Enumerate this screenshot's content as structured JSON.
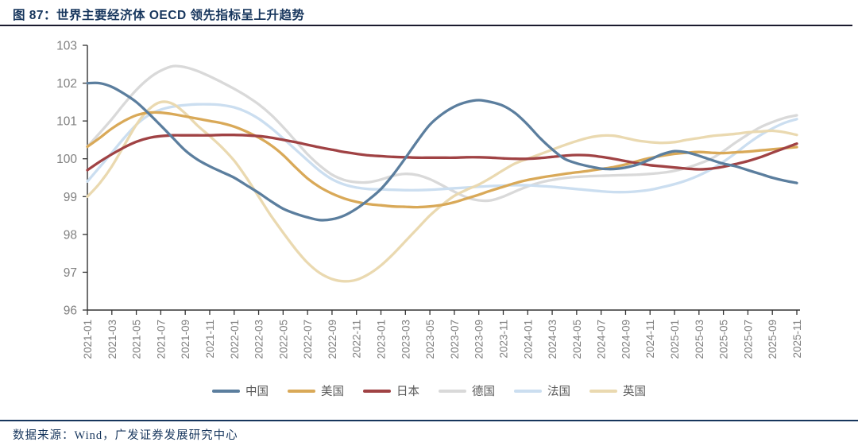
{
  "page": {
    "title": "图 87：世界主要经济体 OECD 领先指标呈上升趋势",
    "source": "数据来源：Wind，广发证券发展研究中心"
  },
  "colors": {
    "title_navy": "#17365D",
    "rule_dark": "#1a1a2e",
    "axis_line": "#333333",
    "tick_label_gray": "#808080",
    "legend_text_gray": "#595959"
  },
  "chart_data": {
    "type": "line",
    "title": "世界主要经济体 OECD 领先指标",
    "ylabel": "",
    "xlabel": "",
    "ylim": [
      96,
      103
    ],
    "y_ticks": [
      96,
      97,
      98,
      99,
      100,
      101,
      102,
      103
    ],
    "grid": false,
    "legend_position": "bottom",
    "x_tick_every": 2,
    "x_tick_labels": [
      "2021-01",
      "2021-03",
      "2021-05",
      "2021-07",
      "2021-09",
      "2021-11",
      "2022-01",
      "2022-03",
      "2022-05",
      "2022-07",
      "2022-09",
      "2022-11",
      "2023-01",
      "2023-03",
      "2023-05",
      "2023-07",
      "2023-09",
      "2023-11",
      "2024-01",
      "2024-03",
      "2024-05",
      "2024-07",
      "2024-09",
      "2024-11",
      "2025-01",
      "2025-03",
      "2025-05",
      "2025-07",
      "2025-09",
      "2025-11"
    ],
    "x": [
      "2021-01",
      "2021-02",
      "2021-03",
      "2021-04",
      "2021-05",
      "2021-06",
      "2021-07",
      "2021-08",
      "2021-09",
      "2021-10",
      "2021-11",
      "2021-12",
      "2022-01",
      "2022-02",
      "2022-03",
      "2022-04",
      "2022-05",
      "2022-06",
      "2022-07",
      "2022-08",
      "2022-09",
      "2022-10",
      "2022-11",
      "2022-12",
      "2023-01",
      "2023-02",
      "2023-03",
      "2023-04",
      "2023-05",
      "2023-06",
      "2023-07",
      "2023-08",
      "2023-09",
      "2023-10",
      "2023-11",
      "2023-12",
      "2024-01",
      "2024-02",
      "2024-03",
      "2024-04",
      "2024-05",
      "2024-06",
      "2024-07",
      "2024-08",
      "2024-09",
      "2024-10",
      "2024-11",
      "2024-12",
      "2025-01",
      "2025-02",
      "2025-03",
      "2025-04",
      "2025-05",
      "2025-06",
      "2025-07",
      "2025-08",
      "2025-09",
      "2025-10",
      "2025-11"
    ],
    "series": [
      {
        "id": "china",
        "name": "中国",
        "color": "#5B7E9E",
        "values": [
          102.0,
          102.0,
          101.9,
          101.72,
          101.5,
          101.2,
          100.88,
          100.55,
          100.22,
          99.98,
          99.8,
          99.65,
          99.5,
          99.3,
          99.1,
          98.88,
          98.68,
          98.55,
          98.45,
          98.38,
          98.4,
          98.5,
          98.68,
          98.92,
          99.2,
          99.58,
          100.02,
          100.48,
          100.9,
          101.18,
          101.38,
          101.5,
          101.55,
          101.5,
          101.4,
          101.2,
          100.9,
          100.55,
          100.25,
          100.0,
          99.88,
          99.8,
          99.74,
          99.73,
          99.77,
          99.85,
          99.98,
          100.12,
          100.2,
          100.17,
          100.08,
          99.97,
          99.87,
          99.8,
          99.7,
          99.6,
          99.5,
          99.42,
          99.36
        ]
      },
      {
        "id": "usa",
        "name": "美国",
        "color": "#D9A958",
        "values": [
          100.32,
          100.55,
          100.8,
          101.0,
          101.15,
          101.22,
          101.22,
          101.18,
          101.12,
          101.06,
          101.0,
          100.94,
          100.85,
          100.72,
          100.56,
          100.36,
          100.1,
          99.78,
          99.48,
          99.25,
          99.08,
          98.95,
          98.86,
          98.8,
          98.77,
          98.74,
          98.73,
          98.72,
          98.74,
          98.78,
          98.85,
          98.95,
          99.05,
          99.16,
          99.26,
          99.36,
          99.44,
          99.5,
          99.55,
          99.6,
          99.64,
          99.68,
          99.73,
          99.78,
          99.85,
          99.94,
          100.02,
          100.08,
          100.13,
          100.16,
          100.18,
          100.16,
          100.15,
          100.17,
          100.19,
          100.22,
          100.25,
          100.28,
          100.31
        ]
      },
      {
        "id": "japan",
        "name": "日本",
        "color": "#A04244",
        "values": [
          99.7,
          99.92,
          100.12,
          100.3,
          100.45,
          100.55,
          100.6,
          100.62,
          100.62,
          100.62,
          100.62,
          100.63,
          100.63,
          100.62,
          100.6,
          100.56,
          100.5,
          100.44,
          100.37,
          100.3,
          100.24,
          100.18,
          100.13,
          100.09,
          100.07,
          100.05,
          100.04,
          100.03,
          100.03,
          100.03,
          100.03,
          100.04,
          100.04,
          100.03,
          100.01,
          100.0,
          100.0,
          100.02,
          100.05,
          100.08,
          100.1,
          100.09,
          100.05,
          100.0,
          99.94,
          99.88,
          99.83,
          99.8,
          99.77,
          99.74,
          99.72,
          99.74,
          99.79,
          99.86,
          99.94,
          100.04,
          100.16,
          100.28,
          100.4
        ]
      },
      {
        "id": "germany",
        "name": "德国",
        "color": "#D9D9D9",
        "values": [
          100.32,
          100.68,
          101.05,
          101.45,
          101.82,
          102.12,
          102.33,
          102.45,
          102.42,
          102.32,
          102.18,
          102.02,
          101.85,
          101.66,
          101.44,
          101.17,
          100.84,
          100.48,
          100.12,
          99.82,
          99.58,
          99.44,
          99.38,
          99.38,
          99.45,
          99.55,
          99.6,
          99.57,
          99.46,
          99.3,
          99.13,
          98.98,
          98.9,
          98.9,
          99.0,
          99.14,
          99.27,
          99.37,
          99.44,
          99.49,
          99.52,
          99.54,
          99.55,
          99.56,
          99.57,
          99.58,
          99.6,
          99.63,
          99.68,
          99.76,
          99.87,
          100.0,
          100.2,
          100.43,
          100.64,
          100.83,
          100.97,
          101.08,
          101.15
        ]
      },
      {
        "id": "france",
        "name": "法国",
        "color": "#CBDEF0",
        "values": [
          99.4,
          99.78,
          100.16,
          100.55,
          100.9,
          101.15,
          101.3,
          101.38,
          101.42,
          101.44,
          101.44,
          101.42,
          101.36,
          101.24,
          101.06,
          100.82,
          100.54,
          100.25,
          99.96,
          99.68,
          99.46,
          99.32,
          99.24,
          99.2,
          99.19,
          99.18,
          99.17,
          99.17,
          99.18,
          99.2,
          99.22,
          99.24,
          99.26,
          99.28,
          99.29,
          99.3,
          99.3,
          99.28,
          99.26,
          99.23,
          99.2,
          99.17,
          99.14,
          99.12,
          99.12,
          99.14,
          99.18,
          99.25,
          99.33,
          99.43,
          99.56,
          99.72,
          99.92,
          100.15,
          100.4,
          100.62,
          100.8,
          100.95,
          101.05
        ]
      },
      {
        "id": "uk",
        "name": "英国",
        "color": "#EAD9B0",
        "values": [
          99.0,
          99.35,
          99.8,
          100.35,
          100.9,
          101.3,
          101.5,
          101.45,
          101.2,
          100.88,
          100.6,
          100.3,
          99.95,
          99.5,
          99.0,
          98.5,
          98.05,
          97.62,
          97.25,
          96.98,
          96.82,
          96.76,
          96.8,
          96.95,
          97.18,
          97.48,
          97.82,
          98.16,
          98.5,
          98.78,
          99.02,
          99.18,
          99.32,
          99.5,
          99.7,
          99.88,
          100.0,
          100.12,
          100.24,
          100.36,
          100.47,
          100.56,
          100.61,
          100.61,
          100.55,
          100.48,
          100.44,
          100.42,
          100.44,
          100.5,
          100.55,
          100.6,
          100.63,
          100.66,
          100.7,
          100.72,
          100.74,
          100.7,
          100.63
        ]
      }
    ],
    "draw_order": [
      3,
      4,
      5,
      1,
      2,
      0
    ]
  }
}
